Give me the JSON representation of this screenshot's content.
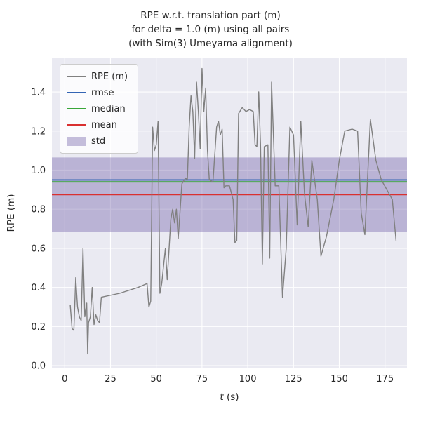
{
  "chart_data": {
    "type": "line",
    "title_lines": [
      "RPE w.r.t. translation part (m)",
      "for delta = 1.0 (m) using all pairs",
      "(with Sim(3) Umeyama alignment)"
    ],
    "xlabel": "t (s)",
    "xlabel_italic": "t",
    "xlabel_rest": " (s)",
    "ylabel": "RPE (m)",
    "xlim": [
      -7,
      187
    ],
    "ylim": [
      -0.014,
      1.576
    ],
    "xticks": [
      0,
      25,
      50,
      75,
      100,
      125,
      150,
      175
    ],
    "yticks": [
      0.0,
      0.2,
      0.4,
      0.6,
      0.8,
      1.0,
      1.2,
      1.4
    ],
    "grid": true,
    "legend_position": "upper left",
    "series": {
      "rpe": {
        "label": "RPE (m)",
        "color": "#808080",
        "x": [
          3,
          4,
          5,
          6,
          7,
          8,
          9,
          10,
          11,
          12,
          12.5,
          13,
          14,
          15,
          16,
          17,
          18,
          19,
          20,
          30,
          40,
          45,
          46,
          47,
          48,
          49,
          50,
          51,
          52,
          53,
          55,
          56,
          58,
          59,
          60,
          61,
          62,
          64,
          66,
          67,
          68,
          69,
          70,
          71,
          72,
          73,
          74,
          75,
          76,
          77,
          78,
          79,
          81,
          83,
          84,
          85,
          86,
          87,
          88,
          90,
          92,
          93,
          94,
          95,
          97,
          99,
          101,
          103,
          104,
          105,
          106,
          107,
          108,
          109,
          111,
          112,
          113,
          115,
          117,
          119,
          121,
          123,
          125,
          127,
          129,
          131,
          133,
          135,
          138,
          140,
          143,
          147,
          150,
          153,
          157,
          160,
          162,
          164,
          167,
          170,
          173,
          176,
          179,
          181
        ],
        "y": [
          0.31,
          0.19,
          0.18,
          0.45,
          0.3,
          0.25,
          0.23,
          0.6,
          0.25,
          0.32,
          0.06,
          0.22,
          0.25,
          0.4,
          0.21,
          0.26,
          0.23,
          0.22,
          0.35,
          0.37,
          0.4,
          0.42,
          0.3,
          0.33,
          1.22,
          1.1,
          1.13,
          1.25,
          0.37,
          0.42,
          0.6,
          0.44,
          0.75,
          0.8,
          0.73,
          0.8,
          0.65,
          0.93,
          0.96,
          0.95,
          1.22,
          1.38,
          1.3,
          1.06,
          1.45,
          1.3,
          1.11,
          1.52,
          1.3,
          1.42,
          1.1,
          0.95,
          0.94,
          1.22,
          1.25,
          1.18,
          1.21,
          0.91,
          0.92,
          0.92,
          0.85,
          0.63,
          0.64,
          1.29,
          1.32,
          1.3,
          1.31,
          1.3,
          1.13,
          1.12,
          1.4,
          1.13,
          0.52,
          1.12,
          1.13,
          0.55,
          1.45,
          0.92,
          0.92,
          0.35,
          0.6,
          1.22,
          1.18,
          0.72,
          1.25,
          0.88,
          0.71,
          1.05,
          0.85,
          0.56,
          0.66,
          0.85,
          1.05,
          1.2,
          1.21,
          1.2,
          0.78,
          0.67,
          1.26,
          1.05,
          0.95,
          0.9,
          0.85,
          0.64
        ]
      }
    },
    "stats": {
      "rmse": {
        "label": "rmse",
        "value": 0.95,
        "color": "#3465b4"
      },
      "median": {
        "label": "median",
        "value": 0.94,
        "color": "#39a639"
      },
      "mean": {
        "label": "mean",
        "value": 0.875,
        "color": "#d93030"
      },
      "std": {
        "label": "std",
        "value": 0.19,
        "band": [
          0.685,
          1.065
        ],
        "color": "#8172b2",
        "alpha": 0.45
      }
    },
    "legend": [
      {
        "key": "rpe",
        "label": "RPE (m)",
        "type": "line",
        "color": "#808080"
      },
      {
        "key": "rmse",
        "label": "rmse",
        "type": "line",
        "color": "#3465b4"
      },
      {
        "key": "median",
        "label": "median",
        "type": "line",
        "color": "#39a639"
      },
      {
        "key": "mean",
        "label": "mean",
        "type": "line",
        "color": "#d93030"
      },
      {
        "key": "std",
        "label": "std",
        "type": "patch",
        "color": "#8172b2",
        "alpha": 0.45
      }
    ],
    "colors": {
      "figure_bg": "#ffffff",
      "axes_bg": "#eaeaf2",
      "grid": "#ffffff",
      "text": "#262626"
    }
  }
}
